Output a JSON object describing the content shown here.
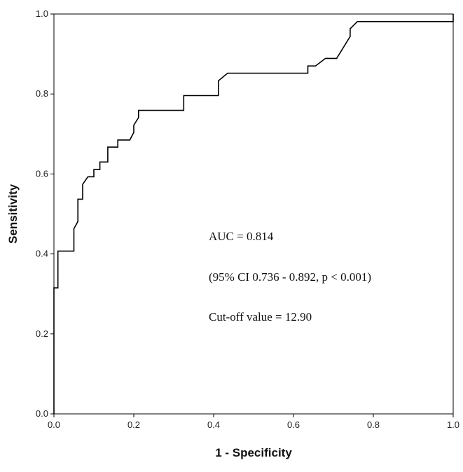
{
  "chart_data": {
    "type": "line",
    "title": "",
    "xlabel": "1 - Specificity",
    "ylabel": "Sensitivity",
    "xlim": [
      0,
      1
    ],
    "ylim": [
      0,
      1
    ],
    "xticks": [
      "0.0",
      "0.2",
      "0.4",
      "0.6",
      "0.8",
      "1.0"
    ],
    "yticks": [
      "0.0",
      "0.2",
      "0.4",
      "0.6",
      "0.8",
      "1.0"
    ],
    "grid": false,
    "legend": "none",
    "series": [
      {
        "color": "#000000",
        "points": [
          [
            0.0,
            0.0
          ],
          [
            0.0,
            0.315
          ],
          [
            0.01,
            0.315
          ],
          [
            0.01,
            0.407
          ],
          [
            0.05,
            0.407
          ],
          [
            0.05,
            0.463
          ],
          [
            0.06,
            0.481
          ],
          [
            0.06,
            0.537
          ],
          [
            0.072,
            0.537
          ],
          [
            0.072,
            0.574
          ],
          [
            0.085,
            0.593
          ],
          [
            0.1,
            0.593
          ],
          [
            0.1,
            0.611
          ],
          [
            0.115,
            0.611
          ],
          [
            0.115,
            0.63
          ],
          [
            0.135,
            0.63
          ],
          [
            0.135,
            0.667
          ],
          [
            0.16,
            0.667
          ],
          [
            0.16,
            0.685
          ],
          [
            0.19,
            0.685
          ],
          [
            0.2,
            0.704
          ],
          [
            0.2,
            0.722
          ],
          [
            0.212,
            0.741
          ],
          [
            0.212,
            0.759
          ],
          [
            0.325,
            0.759
          ],
          [
            0.325,
            0.796
          ],
          [
            0.412,
            0.796
          ],
          [
            0.412,
            0.833
          ],
          [
            0.435,
            0.852
          ],
          [
            0.636,
            0.852
          ],
          [
            0.636,
            0.87
          ],
          [
            0.655,
            0.87
          ],
          [
            0.68,
            0.889
          ],
          [
            0.708,
            0.889
          ],
          [
            0.742,
            0.944
          ],
          [
            0.742,
            0.963
          ],
          [
            0.76,
            0.981
          ],
          [
            1.0,
            0.981
          ],
          [
            1.0,
            1.0
          ]
        ]
      }
    ],
    "annotations": [
      "AUC = 0.814",
      "(95% CI 0.736 - 0.892, p < 0.001)",
      "Cut-off value = 12.90"
    ]
  }
}
